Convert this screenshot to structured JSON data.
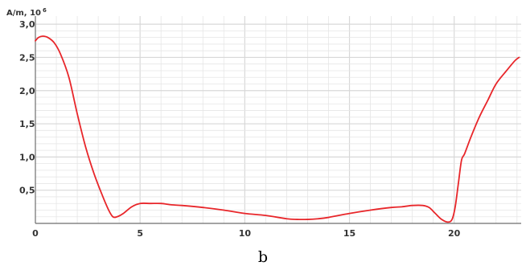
{
  "chart_data": {
    "type": "line",
    "ylabel": "A/m, 10",
    "ylabel_exponent": "6",
    "caption": "b",
    "xlim": [
      0,
      23.2
    ],
    "ylim": [
      0,
      3.05
    ],
    "x_ticks": [
      0,
      5,
      10,
      15,
      20
    ],
    "x_tick_labels": [
      "0",
      "5",
      "10",
      "15",
      "20"
    ],
    "y_ticks": [
      0.5,
      1.0,
      1.5,
      2.0,
      2.5,
      3.0
    ],
    "y_tick_labels": [
      "0,5",
      "1,0",
      "1,5",
      "2,0",
      "2,5",
      "3,0"
    ],
    "grid": true,
    "line_color": "#e8262a",
    "grid_color": "#e6e6e6",
    "axis_color": "#6e6e6e",
    "series": [
      {
        "x": [
          0,
          0.15,
          0.35,
          0.6,
          0.9,
          1.2,
          1.6,
          2.0,
          2.4,
          2.8,
          3.2,
          3.5,
          3.7,
          3.9,
          4.2,
          4.6,
          5.0,
          5.5,
          6.0,
          6.5,
          7.0,
          8.0,
          9.0,
          10.0,
          11.0,
          12.0,
          12.5,
          13.0,
          13.5,
          14.0,
          15.0,
          16.0,
          17.0,
          17.5,
          18.0,
          18.5,
          18.8,
          19.1,
          19.4,
          19.7,
          19.9,
          20.05,
          20.2,
          20.35,
          20.5,
          20.8,
          21.2,
          21.6,
          22.0,
          22.5,
          22.9,
          23.1
        ],
        "y": [
          2.75,
          2.8,
          2.82,
          2.8,
          2.72,
          2.55,
          2.2,
          1.65,
          1.15,
          0.75,
          0.42,
          0.2,
          0.1,
          0.1,
          0.15,
          0.25,
          0.3,
          0.3,
          0.3,
          0.28,
          0.27,
          0.24,
          0.2,
          0.15,
          0.12,
          0.07,
          0.06,
          0.06,
          0.07,
          0.09,
          0.15,
          0.2,
          0.24,
          0.25,
          0.27,
          0.27,
          0.24,
          0.15,
          0.06,
          0.02,
          0.06,
          0.25,
          0.6,
          0.95,
          1.05,
          1.3,
          1.6,
          1.85,
          2.1,
          2.3,
          2.45,
          2.5
        ]
      }
    ]
  }
}
